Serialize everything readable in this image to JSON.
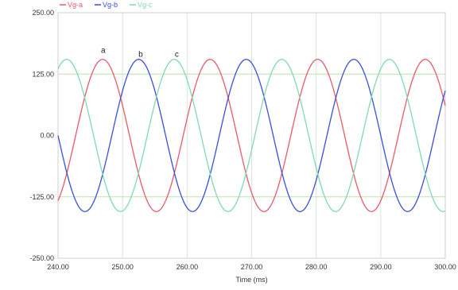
{
  "chart_data": {
    "type": "line",
    "xlabel": "Time (ms)",
    "ylabel": "",
    "xlim": [
      240.0,
      300.0
    ],
    "ylim": [
      -250.0,
      250.0
    ],
    "x_ticks": [
      "240.00",
      "250.00",
      "260.00",
      "270.00",
      "280.00",
      "290.00",
      "300.00"
    ],
    "y_ticks": [
      "250.00",
      "125.00",
      "0.00",
      "-125.00",
      "-250.00"
    ],
    "grid": true,
    "legend_position": "top-left",
    "series": [
      {
        "name": "Vg-a",
        "color": "#e85a6a",
        "amplitude": 155,
        "frequency_hz": 60,
        "peak_time_ms": 246.9
      },
      {
        "name": "Vg-b",
        "color": "#3a4fd8",
        "amplitude": 155,
        "frequency_hz": 60,
        "peak_time_ms": 252.5
      },
      {
        "name": "Vg-c",
        "color": "#7fdab0",
        "amplitude": 155,
        "frequency_hz": 60,
        "peak_time_ms": 258.0
      }
    ],
    "annotations": [
      {
        "text": "a",
        "x": 247.0,
        "y": 168
      },
      {
        "text": "b",
        "x": 252.8,
        "y": 160
      },
      {
        "text": "c",
        "x": 258.4,
        "y": 160
      }
    ],
    "reference_lines_y": [
      125,
      -125
    ]
  }
}
